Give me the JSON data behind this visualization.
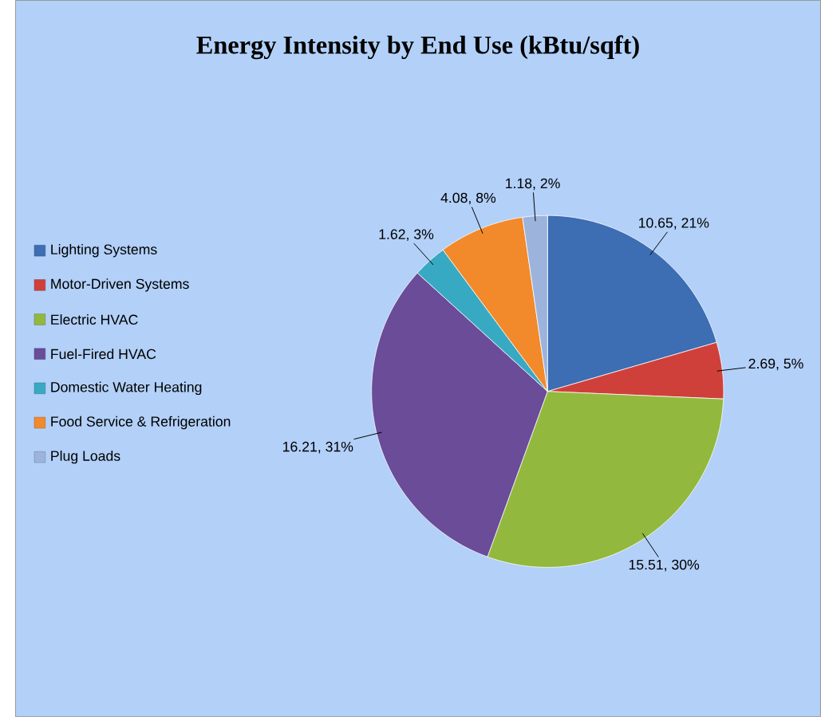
{
  "chart_data": {
    "type": "pie",
    "title": "Energy Intensity by End Use (kBtu/sqft)",
    "categories": [
      "Lighting Systems",
      "Motor-Driven Systems",
      "Electric HVAC",
      "Fuel-Fired HVAC",
      "Domestic Water Heating",
      "Food Service & Refrigeration",
      "Plug Loads"
    ],
    "values": [
      10.65,
      2.69,
      15.51,
      16.21,
      1.62,
      4.08,
      1.18
    ],
    "value_labels": [
      "10.65, 21%",
      "2.69, 5%",
      "15.51, 30%",
      "16.21, 31%",
      "1.62, 3%",
      "4.08, 8%",
      "1.18, 2%"
    ],
    "colors": [
      "#3d6db3",
      "#d0403b",
      "#93b83e",
      "#6a4c98",
      "#38a9c3",
      "#f2892a",
      "#9cb4dc"
    ],
    "legend": "left"
  }
}
